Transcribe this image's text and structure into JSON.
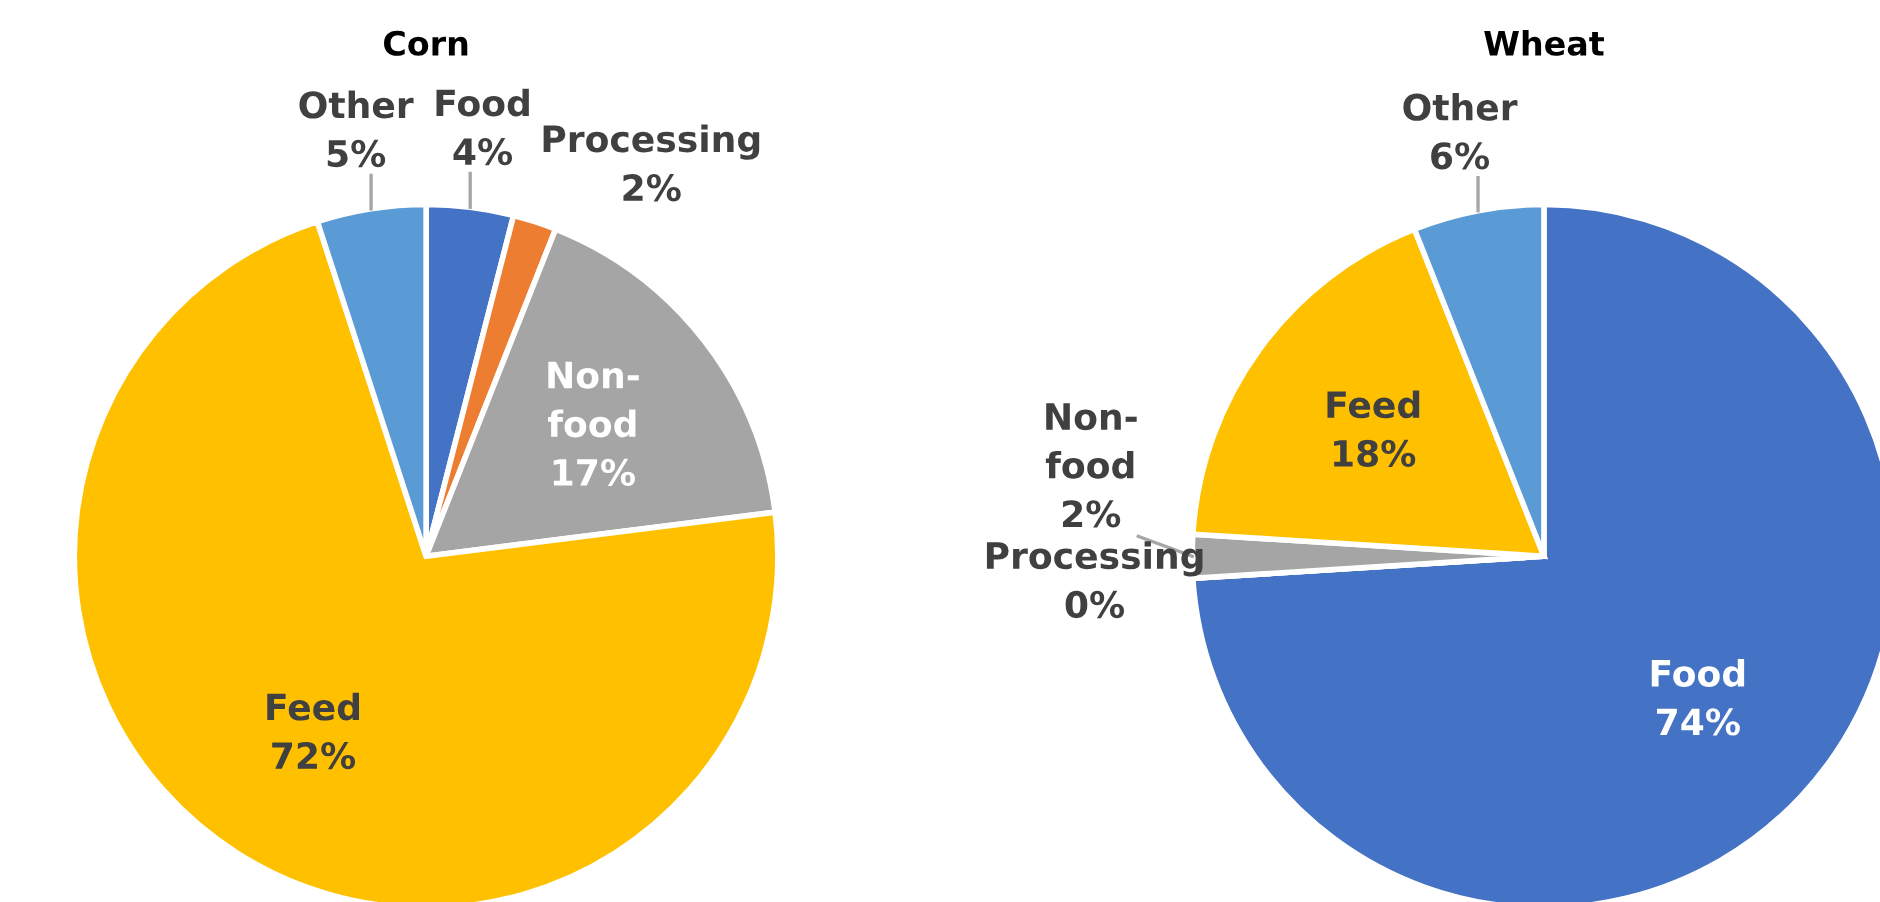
{
  "chart_data": [
    {
      "type": "pie",
      "title": "Corn",
      "categories": [
        "Food",
        "Processing",
        "Non-food",
        "Feed",
        "Other"
      ],
      "values": [
        4,
        2,
        17,
        72,
        5
      ],
      "value_labels": [
        "4%",
        "2%",
        "17%",
        "72%",
        "5%"
      ],
      "colors": [
        "#4472c4",
        "#ed7d31",
        "#a5a5a5",
        "#ffc000",
        "#5b9bd5"
      ]
    },
    {
      "type": "pie",
      "title": "Wheat",
      "categories": [
        "Food",
        "Processing",
        "Non-food",
        "Feed",
        "Other"
      ],
      "values": [
        74,
        0,
        2,
        18,
        6
      ],
      "value_labels": [
        "74%",
        "0%",
        "2%",
        "18%",
        "6%"
      ],
      "colors": [
        "#4472c4",
        "#ed7d31",
        "#a5a5a5",
        "#ffc000",
        "#5b9bd5"
      ]
    }
  ]
}
